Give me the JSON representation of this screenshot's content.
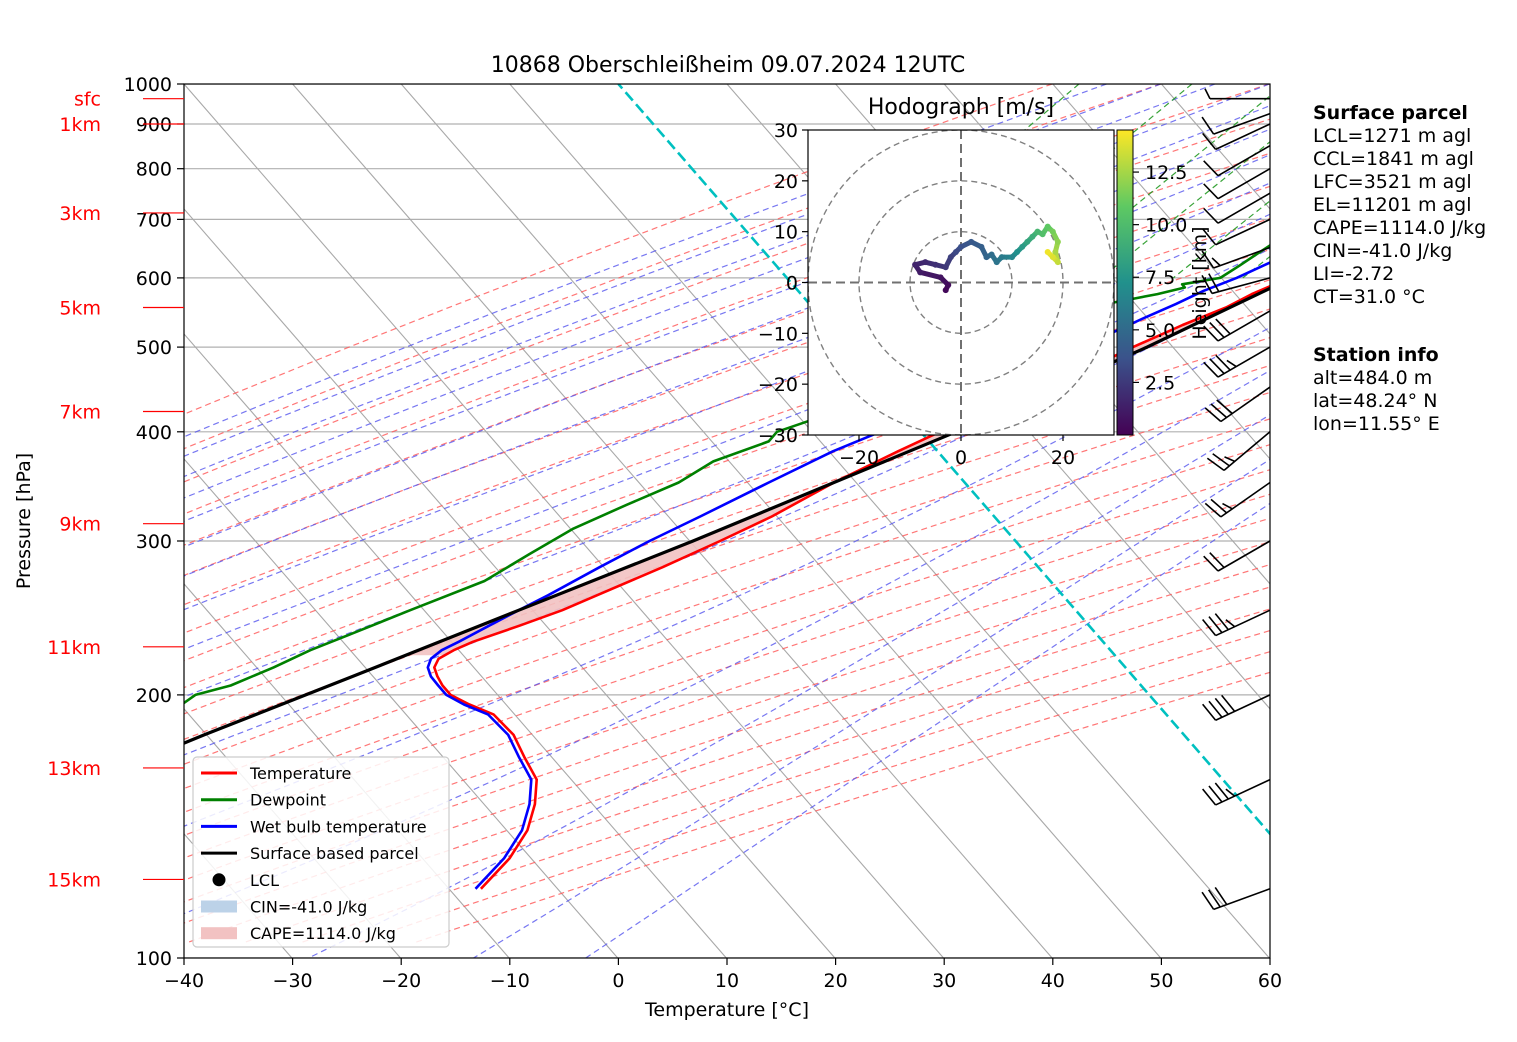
{
  "title": "10868 Oberschleißheim 09.07.2024 12UTC",
  "chart_data": {
    "type": "skew-t",
    "title": "10868 Oberschleißheim 09.07.2024 12UTC",
    "xlabel": "Temperature [°C]",
    "ylabel": "Pressure [hPa]",
    "xlim": [
      -40,
      60
    ],
    "ylim": [
      1000,
      100
    ],
    "y_scale": "log",
    "x_ticks": [
      -40,
      -30,
      -20,
      -10,
      0,
      10,
      20,
      30,
      40,
      50,
      60
    ],
    "y_ticks": [
      1000,
      900,
      800,
      700,
      600,
      500,
      400,
      300,
      200,
      100
    ],
    "height_labels": [
      {
        "label": "15km",
        "pressure": 123
      },
      {
        "label": "13km",
        "pressure": 165
      },
      {
        "label": "11km",
        "pressure": 227
      },
      {
        "label": "9km",
        "pressure": 314
      },
      {
        "label": "7km",
        "pressure": 422
      },
      {
        "label": "5km",
        "pressure": 555
      },
      {
        "label": "3km",
        "pressure": 712
      },
      {
        "label": "1km",
        "pressure": 900
      },
      {
        "label": "sfc",
        "pressure": 962
      }
    ],
    "legend": {
      "placement": "lower-left",
      "entries": [
        {
          "label": "Temperature",
          "color": "#ff0000",
          "kind": "line"
        },
        {
          "label": "Dewpoint",
          "color": "#008000",
          "kind": "line"
        },
        {
          "label": "Wet bulb temperature",
          "color": "#0000ff",
          "kind": "line"
        },
        {
          "label": "Surface based parcel",
          "color": "#000000",
          "kind": "line"
        },
        {
          "label": "LCL",
          "color": "#000000",
          "kind": "dot"
        },
        {
          "label": "CIN=-41.0 J/kg",
          "color": "#bcd2e8",
          "kind": "patch"
        },
        {
          "label": "CAPE=1114.0 J/kg",
          "color": "#f2c2c2",
          "kind": "patch"
        }
      ]
    },
    "series": [
      {
        "name": "Temperature",
        "color": "#ff0000",
        "points": [
          [
            962,
            27.5
          ],
          [
            950,
            25.2
          ],
          [
            930,
            23.6
          ],
          [
            900,
            22.5
          ],
          [
            880,
            21.8
          ],
          [
            860,
            23.0
          ],
          [
            840,
            21.5
          ],
          [
            820,
            20.0
          ],
          [
            800,
            18.6
          ],
          [
            770,
            16.6
          ],
          [
            745,
            15.0
          ],
          [
            720,
            13.6
          ],
          [
            700,
            12.2
          ],
          [
            690,
            11.3
          ],
          [
            675,
            12.6
          ],
          [
            660,
            12.3
          ],
          [
            640,
            10.8
          ],
          [
            620,
            9.2
          ],
          [
            600,
            7.4
          ],
          [
            575,
            5.2
          ],
          [
            555,
            3.9
          ],
          [
            530,
            1.3
          ],
          [
            500,
            -1.5
          ],
          [
            480,
            -3.2
          ],
          [
            460,
            -5.4
          ],
          [
            430,
            -8.9
          ],
          [
            400,
            -12.5
          ],
          [
            380,
            -14.8
          ],
          [
            350,
            -18.2
          ],
          [
            320,
            -21.2
          ],
          [
            300,
            -24.0
          ],
          [
            280,
            -27.2
          ],
          [
            260,
            -31.0
          ],
          [
            250,
            -33.0
          ],
          [
            240,
            -35.7
          ],
          [
            230,
            -38.7
          ],
          [
            225,
            -39.8
          ],
          [
            220,
            -40.5
          ],
          [
            215,
            -40.2
          ],
          [
            210,
            -39.2
          ],
          [
            205,
            -38.0
          ],
          [
            200,
            -36.5
          ],
          [
            195,
            -34.0
          ],
          [
            190,
            -31.0
          ],
          [
            180,
            -27.5
          ],
          [
            170,
            -24.8
          ],
          [
            160,
            -21.8
          ],
          [
            150,
            -20.0
          ],
          [
            140,
            -18.6
          ],
          [
            130,
            -18.0
          ],
          [
            120,
            -18.2
          ]
        ]
      },
      {
        "name": "Dewpoint",
        "color": "#008000",
        "points": [
          [
            962,
            19.0
          ],
          [
            945,
            17.5
          ],
          [
            925,
            17.2
          ],
          [
            900,
            18.0
          ],
          [
            880,
            18.5
          ],
          [
            870,
            11.0
          ],
          [
            860,
            5.5
          ],
          [
            855,
            6.5
          ],
          [
            850,
            14.0
          ],
          [
            840,
            14.2
          ],
          [
            820,
            13.5
          ],
          [
            800,
            13.0
          ],
          [
            780,
            13.0
          ],
          [
            760,
            13.5
          ],
          [
            740,
            14.0
          ],
          [
            720,
            13.5
          ],
          [
            700,
            11.5
          ],
          [
            690,
            5.8
          ],
          [
            680,
            4.5
          ],
          [
            660,
            3.2
          ],
          [
            640,
            2.5
          ],
          [
            620,
            1.8
          ],
          [
            600,
            1.0
          ],
          [
            590,
            -2.0
          ],
          [
            585,
            -1.5
          ],
          [
            575,
            -3.5
          ],
          [
            560,
            -7.5
          ],
          [
            550,
            -7.8
          ],
          [
            540,
            -8.8
          ],
          [
            520,
            -11.0
          ],
          [
            500,
            -12.5
          ],
          [
            480,
            -14.8
          ],
          [
            460,
            -17.8
          ],
          [
            440,
            -21.2
          ],
          [
            420,
            -24.0
          ],
          [
            400,
            -27.5
          ],
          [
            390,
            -27.5
          ],
          [
            370,
            -31.0
          ],
          [
            350,
            -32.5
          ],
          [
            330,
            -35.5
          ],
          [
            310,
            -38.5
          ],
          [
            290,
            -40.5
          ],
          [
            270,
            -42.5
          ],
          [
            250,
            -47.0
          ],
          [
            235,
            -50.5
          ],
          [
            225,
            -53.0
          ],
          [
            215,
            -55.0
          ],
          [
            205,
            -57.5
          ],
          [
            200,
            -60.0
          ],
          [
            190,
            -61.0
          ],
          [
            180,
            -62.5
          ],
          [
            170,
            -64.0
          ],
          [
            160,
            -65.0
          ],
          [
            150,
            -66.0
          ],
          [
            140,
            -68.0
          ],
          [
            130,
            -69.5
          ],
          [
            120,
            -71.5
          ]
        ]
      },
      {
        "name": "Wet bulb temperature",
        "color": "#0000ff",
        "points": [
          [
            962,
            20.8
          ],
          [
            945,
            19.6
          ],
          [
            925,
            18.7
          ],
          [
            900,
            18.5
          ],
          [
            880,
            17.2
          ],
          [
            870,
            15.0
          ],
          [
            860,
            14.0
          ],
          [
            850,
            15.5
          ],
          [
            840,
            16.5
          ],
          [
            820,
            16.0
          ],
          [
            800,
            15.5
          ],
          [
            780,
            15.0
          ],
          [
            760,
            14.5
          ],
          [
            740,
            13.5
          ],
          [
            720,
            12.5
          ],
          [
            700,
            11.0
          ],
          [
            690,
            9.8
          ],
          [
            680,
            9.0
          ],
          [
            660,
            7.0
          ],
          [
            640,
            5.5
          ],
          [
            620,
            4.0
          ],
          [
            600,
            2.5
          ],
          [
            580,
            0.5
          ],
          [
            560,
            -1.0
          ],
          [
            540,
            -2.8
          ],
          [
            520,
            -4.5
          ],
          [
            500,
            -5.8
          ],
          [
            480,
            -7.6
          ],
          [
            460,
            -9.8
          ],
          [
            440,
            -12.3
          ],
          [
            420,
            -15.0
          ],
          [
            400,
            -18.0
          ],
          [
            380,
            -20.8
          ],
          [
            350,
            -24.2
          ],
          [
            320,
            -27.8
          ],
          [
            300,
            -30.5
          ],
          [
            280,
            -33.0
          ],
          [
            260,
            -35.5
          ],
          [
            250,
            -37.0
          ],
          [
            240,
            -38.5
          ],
          [
            230,
            -40.0
          ],
          [
            225,
            -40.9
          ],
          [
            220,
            -41.2
          ],
          [
            215,
            -40.8
          ],
          [
            210,
            -39.8
          ],
          [
            205,
            -38.4
          ],
          [
            200,
            -36.9
          ],
          [
            195,
            -34.5
          ],
          [
            190,
            -31.5
          ],
          [
            180,
            -28.0
          ],
          [
            170,
            -25.3
          ],
          [
            160,
            -22.3
          ],
          [
            150,
            -20.5
          ],
          [
            140,
            -19.1
          ],
          [
            130,
            -18.5
          ],
          [
            120,
            -18.7
          ]
        ]
      },
      {
        "name": "Surface based parcel",
        "color": "#000000",
        "points": [
          [
            962,
            27.5
          ],
          [
            940,
            25.0
          ],
          [
            900,
            22.5
          ],
          [
            860,
            20.4
          ],
          [
            830,
            19.6
          ],
          [
            800,
            18.2
          ],
          [
            700,
            13.6
          ],
          [
            600,
            7.6
          ],
          [
            500,
            -0.2
          ],
          [
            400,
            -11.0
          ],
          [
            300,
            -26.5
          ],
          [
            250,
            -37.0
          ],
          [
            210,
            -47.0
          ],
          [
            180,
            -56.0
          ],
          [
            150,
            -66.0
          ],
          [
            120,
            -78.0
          ]
        ]
      }
    ],
    "lcl": {
      "label": "LCL",
      "pressure": 830,
      "temperature": 19.6
    },
    "cin_value": -41.0,
    "cape_value": 1114.0,
    "wind_barbs_kt": [
      {
        "pressure": 962,
        "speed": 5,
        "dir": 270
      },
      {
        "pressure": 925,
        "speed": 10,
        "dir": 250
      },
      {
        "pressure": 900,
        "speed": 10,
        "dir": 245
      },
      {
        "pressure": 850,
        "speed": 10,
        "dir": 240
      },
      {
        "pressure": 800,
        "speed": 10,
        "dir": 240
      },
      {
        "pressure": 750,
        "speed": 10,
        "dir": 240
      },
      {
        "pressure": 700,
        "speed": 10,
        "dir": 245
      },
      {
        "pressure": 650,
        "speed": 15,
        "dir": 250
      },
      {
        "pressure": 600,
        "speed": 20,
        "dir": 255
      },
      {
        "pressure": 550,
        "speed": 30,
        "dir": 240
      },
      {
        "pressure": 500,
        "speed": 35,
        "dir": 240
      },
      {
        "pressure": 450,
        "speed": 30,
        "dir": 235
      },
      {
        "pressure": 400,
        "speed": 25,
        "dir": 230
      },
      {
        "pressure": 350,
        "speed": 25,
        "dir": 235
      },
      {
        "pressure": 300,
        "speed": 20,
        "dir": 240
      },
      {
        "pressure": 250,
        "speed": 35,
        "dir": 245
      },
      {
        "pressure": 200,
        "speed": 40,
        "dir": 245
      },
      {
        "pressure": 160,
        "speed": 35,
        "dir": 245
      },
      {
        "pressure": 120,
        "speed": 30,
        "dir": 250
      }
    ],
    "hodograph": {
      "title": "Hodograph [m/s]",
      "xlim": [
        -30,
        30
      ],
      "ylim": [
        -30,
        30
      ],
      "x_ticks": [
        -20,
        0,
        20
      ],
      "y_ticks": [
        -30,
        -20,
        -10,
        0,
        10,
        20,
        30
      ],
      "rings": [
        10,
        20,
        30
      ],
      "colorbar": {
        "label": "Height [km]",
        "ticks": [
          2.5,
          5.0,
          7.5,
          10.0,
          12.5
        ],
        "range": [
          0,
          14.5
        ]
      },
      "points": [
        [
          -3,
          -1.5,
          0.3
        ],
        [
          -2.5,
          -0.5,
          0.5
        ],
        [
          -4,
          1,
          0.8
        ],
        [
          -8,
          2,
          1.2
        ],
        [
          -9,
          3.5,
          1.5
        ],
        [
          -7,
          4,
          1.8
        ],
        [
          -5,
          3.5,
          2.1
        ],
        [
          -3,
          3,
          2.4
        ],
        [
          -2,
          5,
          2.8
        ],
        [
          -1,
          6,
          3.2
        ],
        [
          0,
          7,
          3.6
        ],
        [
          2,
          8,
          4.0
        ],
        [
          4,
          7,
          4.4
        ],
        [
          5,
          5,
          4.8
        ],
        [
          6,
          5.5,
          5.2
        ],
        [
          7,
          4,
          5.6
        ],
        [
          8,
          5,
          6.0
        ],
        [
          10,
          5,
          6.6
        ],
        [
          11,
          6,
          7.2
        ],
        [
          12,
          7,
          7.8
        ],
        [
          13,
          8,
          8.4
        ],
        [
          14,
          9,
          9.0
        ],
        [
          15,
          10,
          9.6
        ],
        [
          16,
          9.5,
          10.2
        ],
        [
          17,
          11,
          10.8
        ],
        [
          18,
          10,
          11.4
        ],
        [
          19,
          8,
          12.0
        ],
        [
          18.5,
          6,
          12.6
        ],
        [
          19,
          4,
          13.2
        ],
        [
          18,
          5,
          13.8
        ],
        [
          17,
          6,
          14.2
        ]
      ]
    }
  },
  "surface_parcel": {
    "title": "Surface parcel",
    "lines": [
      "LCL=1271 m agl",
      "CCL=1841 m agl",
      "LFC=3521 m agl",
      "EL=11201 m agl",
      "CAPE=1114.0 J/kg",
      "CIN=-41.0 J/kg",
      "LI=-2.72",
      "CT=31.0 °C"
    ]
  },
  "station_info": {
    "title": "Station info",
    "lines": [
      "alt=484.0 m",
      "lat=48.24° N",
      "lon=11.55° E"
    ]
  },
  "colors": {
    "temperature": "#ff0000",
    "dewpoint": "#008000",
    "wetbulb": "#0000ff",
    "parcel": "#000000",
    "cape": "#f2c2c2",
    "cin": "#bcd2e8",
    "isotherm0": "#00c0c0"
  }
}
